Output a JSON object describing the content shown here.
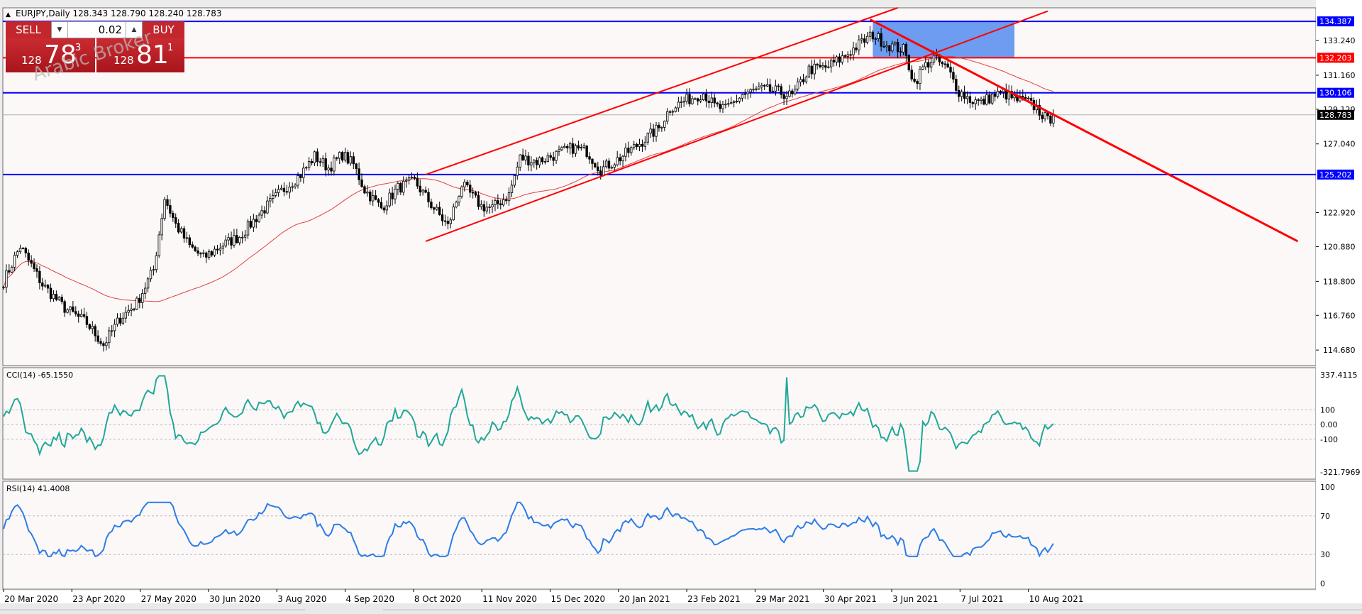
{
  "header": {
    "symbol_info": "EURJPY,Daily  128.343 128.790 128.240 128.783"
  },
  "trade_panel": {
    "sell_label": "SELL",
    "buy_label": "BUY",
    "lot": "0.02",
    "sell_prefix": "128",
    "sell_big": "78",
    "sell_sup": "3",
    "buy_prefix": "128",
    "buy_big": "81",
    "buy_sup": "1"
  },
  "watermark": "Arabic Broker",
  "colors": {
    "background": "#fcf8f8",
    "hline_blue": "#0000ff",
    "trend_red": "#ff0000",
    "ma": "#e04040",
    "cci": "#20a898",
    "rsi": "#2b7de8",
    "zone": "#6d9cf0",
    "candle": "#000000"
  },
  "chart_data": [
    {
      "type": "candlestick",
      "symbol": "EURJPY",
      "timeframe": "Daily",
      "ohlc_last": {
        "open": 128.343,
        "high": 128.79,
        "low": 128.24,
        "close": 128.783
      },
      "y_ticks": [
        "133.240",
        "131.160",
        "129.120",
        "127.040",
        "122.920",
        "120.880",
        "118.800",
        "116.760",
        "114.680"
      ],
      "ylim": [
        113.75,
        135.2
      ],
      "x_ticks": [
        "20 Mar 2020",
        "23 Apr 2020",
        "27 May 2020",
        "30 Jun 2020",
        "3 Aug 2020",
        "4 Sep 2020",
        "8 Oct 2020",
        "11 Nov 2020",
        "15 Dec 2020",
        "20 Jan 2021",
        "23 Feb 2021",
        "29 Mar 2021",
        "30 Apr 2021",
        "3 Jun 2021",
        "7 Jul 2021",
        "10 Aug 2021"
      ],
      "anchors": [
        {
          "i": 0,
          "v": 118.8
        },
        {
          "i": 6,
          "v": 120.9
        },
        {
          "i": 14,
          "v": 118.6
        },
        {
          "i": 22,
          "v": 117.2
        },
        {
          "i": 30,
          "v": 116.3
        },
        {
          "i": 36,
          "v": 115.0
        },
        {
          "i": 42,
          "v": 116.6
        },
        {
          "i": 48,
          "v": 117.5
        },
        {
          "i": 54,
          "v": 119.5
        },
        {
          "i": 58,
          "v": 123.8
        },
        {
          "i": 62,
          "v": 122.2
        },
        {
          "i": 67,
          "v": 120.9
        },
        {
          "i": 72,
          "v": 120.2
        },
        {
          "i": 78,
          "v": 120.9
        },
        {
          "i": 85,
          "v": 121.5
        },
        {
          "i": 92,
          "v": 122.8
        },
        {
          "i": 100,
          "v": 124.2
        },
        {
          "i": 107,
          "v": 125.2
        },
        {
          "i": 112,
          "v": 126.3
        },
        {
          "i": 117,
          "v": 125.6
        },
        {
          "i": 122,
          "v": 126.4
        },
        {
          "i": 126,
          "v": 125.8
        },
        {
          "i": 130,
          "v": 124.3
        },
        {
          "i": 136,
          "v": 123.2
        },
        {
          "i": 142,
          "v": 124.4
        },
        {
          "i": 148,
          "v": 124.8
        },
        {
          "i": 154,
          "v": 123.4
        },
        {
          "i": 160,
          "v": 122.1
        },
        {
          "i": 165,
          "v": 124.6
        },
        {
          "i": 172,
          "v": 123.3
        },
        {
          "i": 176,
          "v": 123.2
        },
        {
          "i": 182,
          "v": 124.0
        },
        {
          "i": 186,
          "v": 126.2
        },
        {
          "i": 192,
          "v": 126.0
        },
        {
          "i": 199,
          "v": 126.4
        },
        {
          "i": 205,
          "v": 126.8
        },
        {
          "i": 210,
          "v": 126.6
        },
        {
          "i": 215,
          "v": 125.5
        },
        {
          "i": 222,
          "v": 126.2
        },
        {
          "i": 230,
          "v": 127.2
        },
        {
          "i": 236,
          "v": 128.0
        },
        {
          "i": 240,
          "v": 129.2
        },
        {
          "i": 245,
          "v": 129.6
        },
        {
          "i": 252,
          "v": 130.1
        },
        {
          "i": 256,
          "v": 129.3
        },
        {
          "i": 260,
          "v": 129.1
        },
        {
          "i": 266,
          "v": 130.0
        },
        {
          "i": 272,
          "v": 130.3
        },
        {
          "i": 278,
          "v": 130.2
        },
        {
          "i": 284,
          "v": 129.9
        },
        {
          "i": 290,
          "v": 131.5
        },
        {
          "i": 296,
          "v": 131.6
        },
        {
          "i": 302,
          "v": 132.2
        },
        {
          "i": 308,
          "v": 133.0
        },
        {
          "i": 313,
          "v": 133.6
        },
        {
          "i": 318,
          "v": 133.0
        },
        {
          "i": 324,
          "v": 132.7
        },
        {
          "i": 328,
          "v": 130.7
        },
        {
          "i": 331,
          "v": 131.6
        },
        {
          "i": 335,
          "v": 132.2
        },
        {
          "i": 340,
          "v": 131.5
        },
        {
          "i": 344,
          "v": 130.2
        },
        {
          "i": 348,
          "v": 129.7
        },
        {
          "i": 352,
          "v": 129.5
        },
        {
          "i": 356,
          "v": 129.9
        },
        {
          "i": 360,
          "v": 130.1
        },
        {
          "i": 364,
          "v": 129.7
        },
        {
          "i": 368,
          "v": 129.6
        },
        {
          "i": 372,
          "v": 129.2
        },
        {
          "i": 376,
          "v": 128.4
        },
        {
          "i": 378,
          "v": 128.783
        }
      ],
      "horizontal_levels": [
        {
          "value": 134.387,
          "label": "134.387",
          "color": "#0000ff"
        },
        {
          "value": 132.203,
          "label": "132.203",
          "color": "#ff0000"
        },
        {
          "value": 130.106,
          "label": "130.106",
          "color": "#0000ff"
        },
        {
          "value": 125.202,
          "label": "125.202",
          "color": "#0000ff"
        }
      ],
      "current_price": 128.783,
      "trendlines": [
        {
          "name": "channel-upper",
          "from": {
            "i": 152,
            "v": 125.2
          },
          "to": {
            "i": 322,
            "v": 135.2
          }
        },
        {
          "name": "channel-lower",
          "from": {
            "i": 152,
            "v": 121.2
          },
          "to": {
            "i": 376,
            "v": 135.0
          }
        },
        {
          "name": "down-trend",
          "from": {
            "i": 312,
            "v": 134.5
          },
          "to": {
            "i": 466,
            "v": 121.2
          }
        }
      ],
      "zone": {
        "from_i": 313,
        "to_i": 364,
        "v_low": 132.2,
        "v_high": 134.4
      },
      "moving_average": {
        "period": "",
        "label": ""
      }
    },
    {
      "type": "line",
      "name": "CCI(14)",
      "value": "-65.1550",
      "y_ticks": [
        "337.4115",
        "100",
        "0.00",
        "-100",
        "-321.7969"
      ],
      "ylim": [
        -321.7969,
        337.4115
      ]
    },
    {
      "type": "line",
      "name": "RSI(14)",
      "value": "41.4008",
      "y_ticks": [
        "100",
        "70",
        "30",
        "0"
      ],
      "ylim": [
        0,
        100
      ]
    }
  ]
}
